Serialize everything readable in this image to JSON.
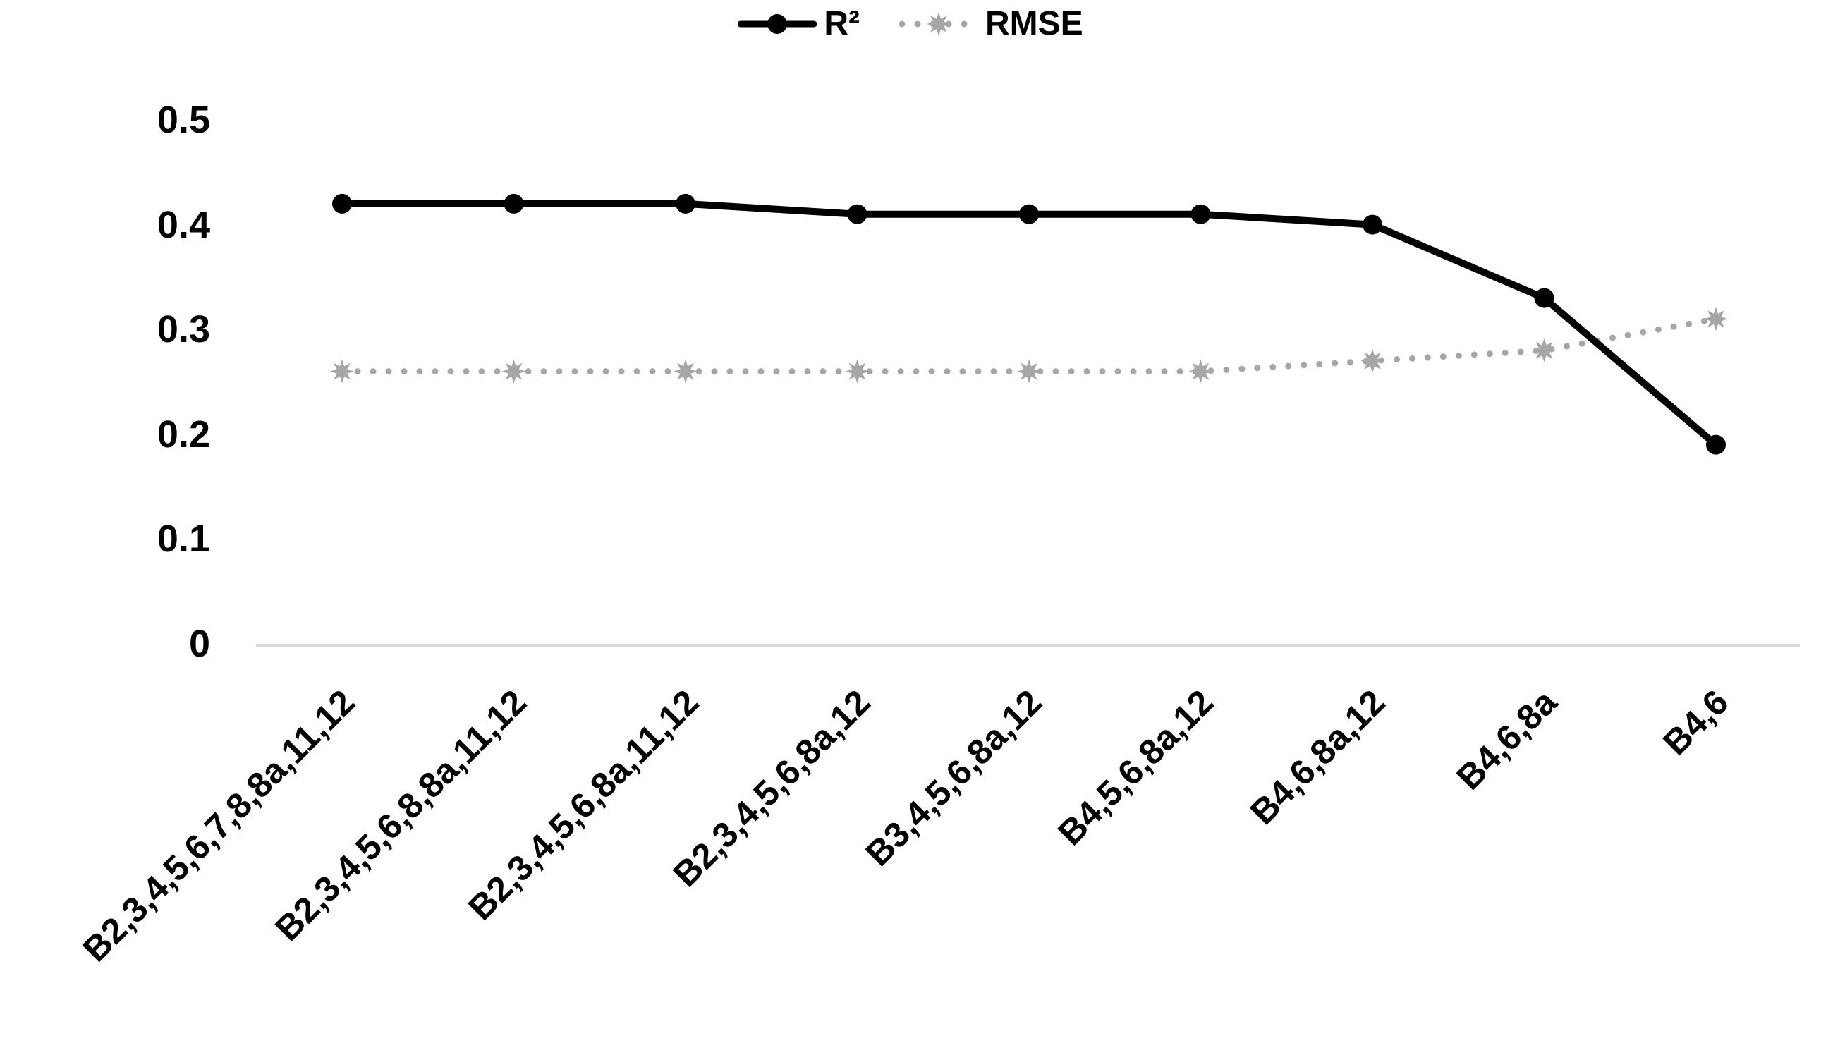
{
  "chart_data": {
    "type": "line",
    "title": "",
    "xlabel": "",
    "ylabel": "",
    "categories": [
      "B2,3,4,5,6,7,8,8a,11,12",
      "B2,3,4,5,6,8,8a,11,12",
      "B2,3,4,5,6,8a,11,12",
      "B2,3,4,5,6,8a,12",
      "B3,4,5,6,8a,12",
      "B4,5,6,8a,12",
      "B4,6,8a,12",
      "B4,6,8a",
      "B4,6"
    ],
    "series": [
      {
        "name": "R²",
        "color": "#000000",
        "line_style": "solid",
        "marker": "circle",
        "values": [
          0.42,
          0.42,
          0.42,
          0.41,
          0.41,
          0.41,
          0.4,
          0.33,
          0.19
        ]
      },
      {
        "name": "RMSE",
        "color": "#a6a6a6",
        "line_style": "dotted",
        "marker": "star",
        "values": [
          0.26,
          0.26,
          0.26,
          0.26,
          0.26,
          0.26,
          0.27,
          0.28,
          0.31
        ]
      }
    ],
    "ylim": [
      0,
      0.5
    ],
    "ytick_labels": [
      "0",
      "0.1",
      "0.2",
      "0.3",
      "0.4",
      "0.5"
    ],
    "grid": "off",
    "legend_position": "top-center",
    "axis_line_color": "#d9d9d9",
    "background": "#ffffff"
  }
}
